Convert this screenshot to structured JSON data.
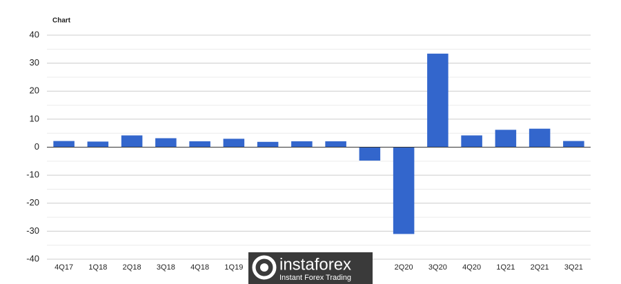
{
  "chart_data": {
    "type": "bar",
    "title": "Chart",
    "categories": [
      "4Q17",
      "1Q18",
      "2Q18",
      "3Q18",
      "4Q18",
      "1Q19",
      null,
      null,
      null,
      null,
      "2Q20",
      "3Q20",
      "4Q20",
      "1Q21",
      "2Q21",
      "3Q21"
    ],
    "values": [
      2.2,
      2.0,
      4.2,
      3.2,
      2.1,
      3.0,
      1.9,
      2.1,
      2.1,
      -4.8,
      -31.0,
      33.4,
      4.2,
      6.2,
      6.6,
      2.2
    ],
    "color": "#3366cc",
    "ylim": [
      -40,
      40
    ],
    "yticks": [
      -40,
      -30,
      -20,
      -10,
      0,
      10,
      20,
      30,
      40
    ],
    "grid": true
  },
  "watermark": {
    "brand": "instaforex",
    "tagline": "Instant Forex Trading"
  }
}
